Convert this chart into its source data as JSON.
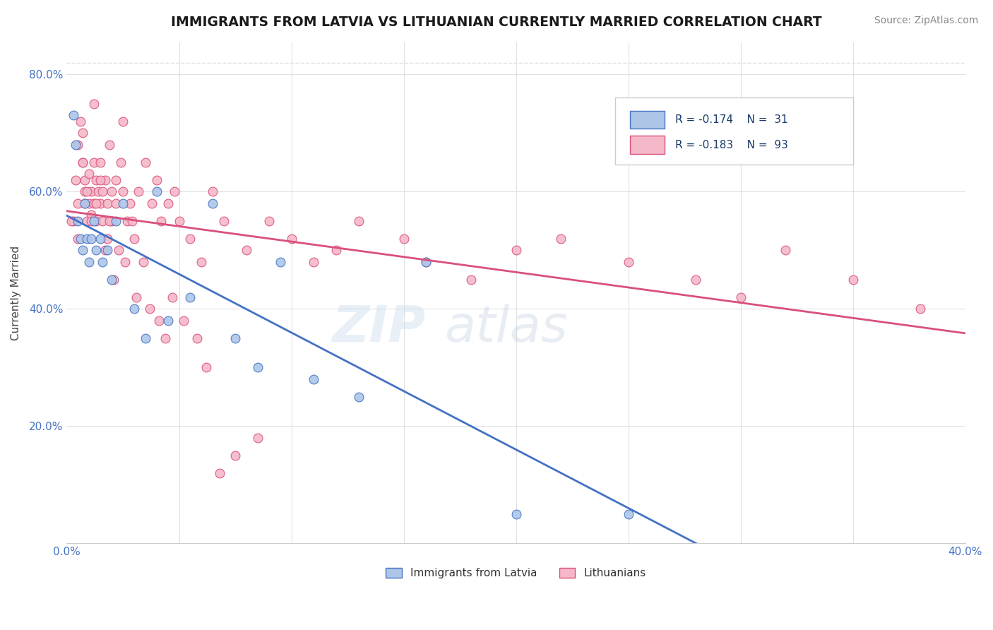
{
  "title": "IMMIGRANTS FROM LATVIA VS LITHUANIAN CURRENTLY MARRIED CORRELATION CHART",
  "source_text": "Source: ZipAtlas.com",
  "ylabel": "Currently Married",
  "xlim": [
    0.0,
    0.4
  ],
  "ylim": [
    0.0,
    0.855
  ],
  "legend_r1": "R = -0.174",
  "legend_n1": "N =  31",
  "legend_r2": "R = -0.183",
  "legend_n2": "N =  93",
  "series1_color": "#adc6e8",
  "series2_color": "#f5b8c8",
  "line1_color": "#4472c4",
  "line2_color": "#d9507a",
  "dashed_color": "#adc6e8",
  "background_color": "#ffffff",
  "grid_color": "#e0e0e0",
  "ytick_positions": [
    0.0,
    0.2,
    0.4,
    0.6,
    0.8
  ],
  "ytick_labels": [
    "",
    "20.0%",
    "40.0%",
    "60.0%",
    "80.0%"
  ],
  "xtick_positions": [
    0.0,
    0.1,
    0.2,
    0.3,
    0.4
  ],
  "xtick_labels": [
    "0.0%",
    "",
    "",
    "",
    "40.0%"
  ],
  "latvia_x": [
    0.003,
    0.004,
    0.005,
    0.006,
    0.007,
    0.008,
    0.009,
    0.01,
    0.011,
    0.012,
    0.013,
    0.015,
    0.016,
    0.018,
    0.02,
    0.022,
    0.025,
    0.03,
    0.035,
    0.04,
    0.045,
    0.055,
    0.065,
    0.075,
    0.085,
    0.095,
    0.11,
    0.13,
    0.16,
    0.2,
    0.25
  ],
  "latvia_y": [
    0.73,
    0.68,
    0.55,
    0.52,
    0.5,
    0.58,
    0.52,
    0.48,
    0.52,
    0.55,
    0.5,
    0.52,
    0.48,
    0.5,
    0.45,
    0.55,
    0.58,
    0.4,
    0.35,
    0.6,
    0.38,
    0.42,
    0.58,
    0.35,
    0.3,
    0.48,
    0.28,
    0.25,
    0.48,
    0.05,
    0.05
  ],
  "lith_x": [
    0.003,
    0.005,
    0.005,
    0.006,
    0.007,
    0.007,
    0.008,
    0.008,
    0.008,
    0.009,
    0.01,
    0.01,
    0.011,
    0.011,
    0.012,
    0.012,
    0.012,
    0.013,
    0.013,
    0.014,
    0.015,
    0.015,
    0.016,
    0.016,
    0.017,
    0.018,
    0.018,
    0.019,
    0.02,
    0.02,
    0.022,
    0.022,
    0.024,
    0.025,
    0.025,
    0.027,
    0.028,
    0.03,
    0.032,
    0.035,
    0.038,
    0.04,
    0.042,
    0.045,
    0.048,
    0.05,
    0.055,
    0.06,
    0.065,
    0.07,
    0.08,
    0.09,
    0.1,
    0.11,
    0.12,
    0.13,
    0.15,
    0.16,
    0.18,
    0.2,
    0.22,
    0.25,
    0.28,
    0.3,
    0.32,
    0.35,
    0.38,
    0.002,
    0.004,
    0.005,
    0.007,
    0.009,
    0.011,
    0.013,
    0.015,
    0.017,
    0.019,
    0.021,
    0.023,
    0.026,
    0.029,
    0.031,
    0.034,
    0.037,
    0.041,
    0.044,
    0.047,
    0.052,
    0.058,
    0.062,
    0.068,
    0.075,
    0.085
  ],
  "lith_y": [
    0.55,
    0.52,
    0.68,
    0.72,
    0.7,
    0.65,
    0.6,
    0.58,
    0.62,
    0.55,
    0.58,
    0.63,
    0.6,
    0.56,
    0.65,
    0.58,
    0.75,
    0.62,
    0.55,
    0.6,
    0.58,
    0.65,
    0.6,
    0.55,
    0.62,
    0.58,
    0.52,
    0.68,
    0.6,
    0.55,
    0.62,
    0.58,
    0.65,
    0.6,
    0.72,
    0.55,
    0.58,
    0.52,
    0.6,
    0.65,
    0.58,
    0.62,
    0.55,
    0.58,
    0.6,
    0.55,
    0.52,
    0.48,
    0.6,
    0.55,
    0.5,
    0.55,
    0.52,
    0.48,
    0.5,
    0.55,
    0.52,
    0.48,
    0.45,
    0.5,
    0.52,
    0.48,
    0.45,
    0.42,
    0.5,
    0.45,
    0.4,
    0.55,
    0.62,
    0.58,
    0.65,
    0.6,
    0.55,
    0.58,
    0.62,
    0.5,
    0.55,
    0.45,
    0.5,
    0.48,
    0.55,
    0.42,
    0.48,
    0.4,
    0.38,
    0.35,
    0.42,
    0.38,
    0.35,
    0.3,
    0.12,
    0.15,
    0.18
  ]
}
